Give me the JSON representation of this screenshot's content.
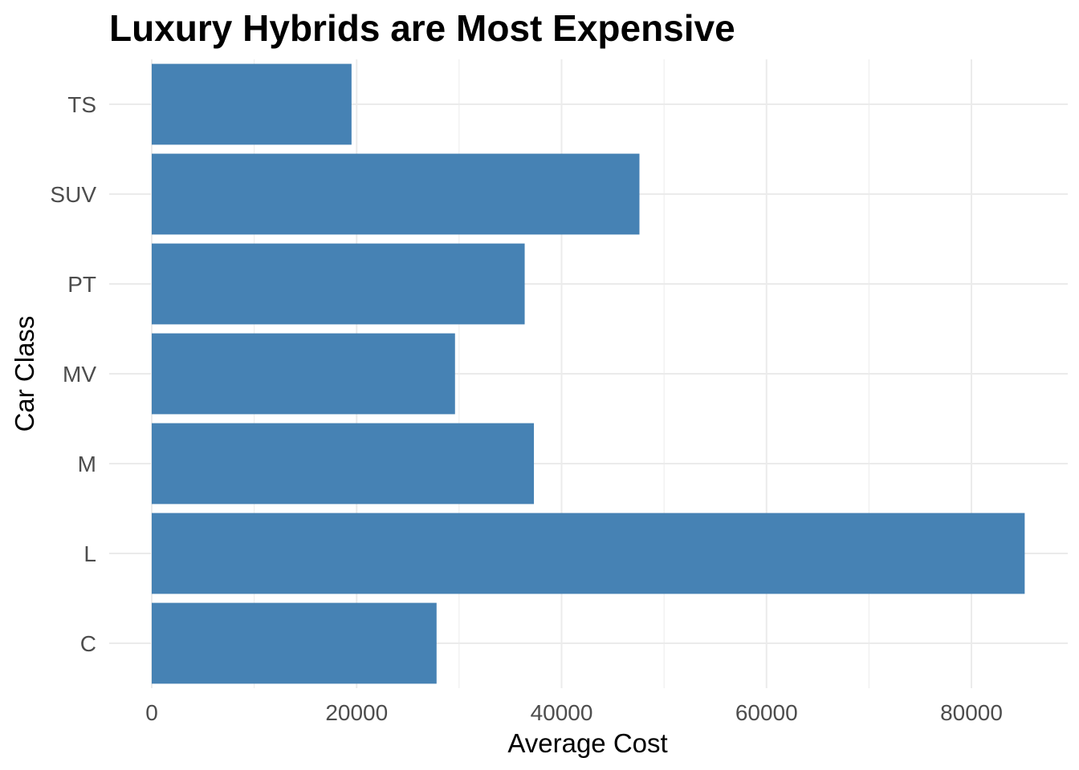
{
  "chart_data": {
    "type": "bar",
    "orientation": "horizontal",
    "title": "Luxury Hybrids are Most Expensive",
    "xlabel": "Average Cost",
    "ylabel": "Car Class",
    "categories": [
      "C",
      "L",
      "M",
      "MV",
      "PT",
      "SUV",
      "TS"
    ],
    "values": [
      27800,
      85200,
      37300,
      29600,
      36400,
      47600,
      19500
    ],
    "xlim": [
      0,
      89000
    ],
    "xticks": [
      "0",
      "20000",
      "40000",
      "60000",
      "80000"
    ],
    "xtick_values": [
      0,
      20000,
      40000,
      60000,
      80000
    ],
    "bar_color": "#4682B4",
    "grid": true,
    "grid_color": "#ebebeb",
    "legend": "none"
  }
}
